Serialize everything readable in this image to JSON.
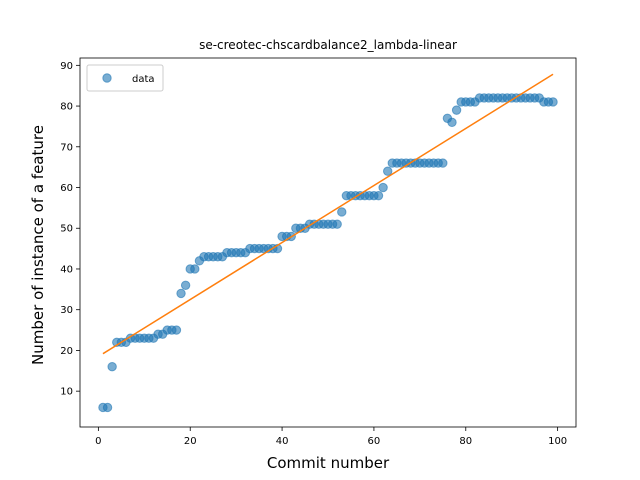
{
  "chart_data": {
    "type": "scatter",
    "title": "se-creotec-chscardbalance2_lambda-linear",
    "xlabel": "Commit number",
    "ylabel": "Number of instance of a feature",
    "xlim": [
      -4,
      104
    ],
    "ylim": [
      1.2,
      91.8
    ],
    "xticks": [
      0,
      20,
      40,
      60,
      80,
      100
    ],
    "yticks": [
      10,
      20,
      30,
      40,
      50,
      60,
      70,
      80,
      90
    ],
    "grid": false,
    "legend": {
      "placement": "upper-left",
      "entries": [
        "data"
      ]
    },
    "series": [
      {
        "name": "data",
        "kind": "points",
        "color": "#1f77b4",
        "x": [
          1,
          2,
          3,
          4,
          5,
          6,
          7,
          8,
          9,
          10,
          11,
          12,
          13,
          14,
          15,
          16,
          17,
          18,
          19,
          20,
          21,
          22,
          23,
          24,
          25,
          26,
          27,
          28,
          29,
          30,
          31,
          32,
          33,
          34,
          35,
          36,
          37,
          38,
          39,
          40,
          41,
          42,
          43,
          44,
          45,
          46,
          47,
          48,
          49,
          50,
          51,
          52,
          53,
          54,
          55,
          56,
          57,
          58,
          59,
          60,
          61,
          62,
          63,
          64,
          65,
          66,
          67,
          68,
          69,
          70,
          71,
          72,
          73,
          74,
          75,
          76,
          77,
          78,
          79,
          80,
          81,
          82,
          83,
          84,
          85,
          86,
          87,
          88,
          89,
          90,
          91,
          92,
          93,
          94,
          95,
          96,
          97,
          98,
          99
        ],
        "y": [
          6,
          6,
          16,
          22,
          22,
          22,
          23,
          23,
          23,
          23,
          23,
          23,
          24,
          24,
          25,
          25,
          25,
          34,
          36,
          40,
          40,
          42,
          43,
          43,
          43,
          43,
          43,
          44,
          44,
          44,
          44,
          44,
          45,
          45,
          45,
          45,
          45,
          45,
          45,
          48,
          48,
          48,
          50,
          50,
          50,
          51,
          51,
          51,
          51,
          51,
          51,
          51,
          54,
          58,
          58,
          58,
          58,
          58,
          58,
          58,
          58,
          60,
          64,
          66,
          66,
          66,
          66,
          66,
          66,
          66,
          66,
          66,
          66,
          66,
          66,
          77,
          76,
          79,
          81,
          81,
          81,
          81,
          82,
          82,
          82,
          82,
          82,
          82,
          82,
          82,
          82,
          82,
          82,
          82,
          82,
          82,
          81,
          81,
          81
        ]
      },
      {
        "name": "",
        "kind": "line",
        "color": "#ff7f0e",
        "x": [
          1,
          99
        ],
        "y": [
          19.2,
          87.8
        ]
      }
    ]
  }
}
